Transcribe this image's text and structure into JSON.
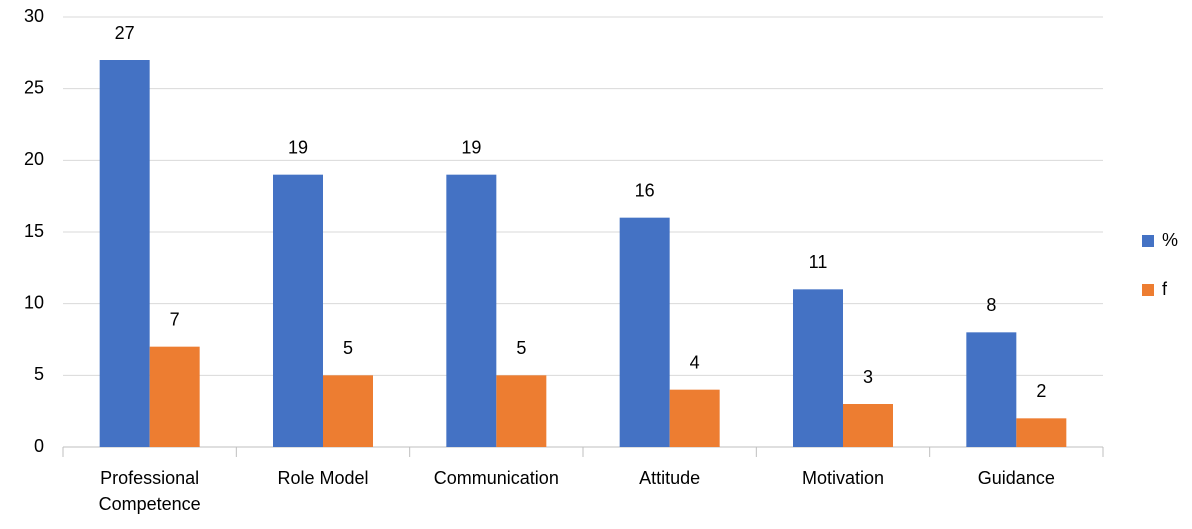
{
  "chart_data": {
    "type": "bar",
    "categories": [
      "Professional Competence",
      "Role Model",
      "Communication",
      "Attitude",
      "Motivation",
      "Guidance"
    ],
    "series": [
      {
        "name": "%",
        "color": "#4472c4",
        "values": [
          27,
          19,
          19,
          16,
          11,
          8
        ]
      },
      {
        "name": "f",
        "color": "#ed7d31",
        "values": [
          7,
          5,
          5,
          4,
          3,
          2
        ]
      }
    ],
    "ylim": [
      0,
      30
    ],
    "yticks": [
      0,
      5,
      10,
      15,
      20,
      25,
      30
    ],
    "grid": true,
    "legend": "right"
  }
}
